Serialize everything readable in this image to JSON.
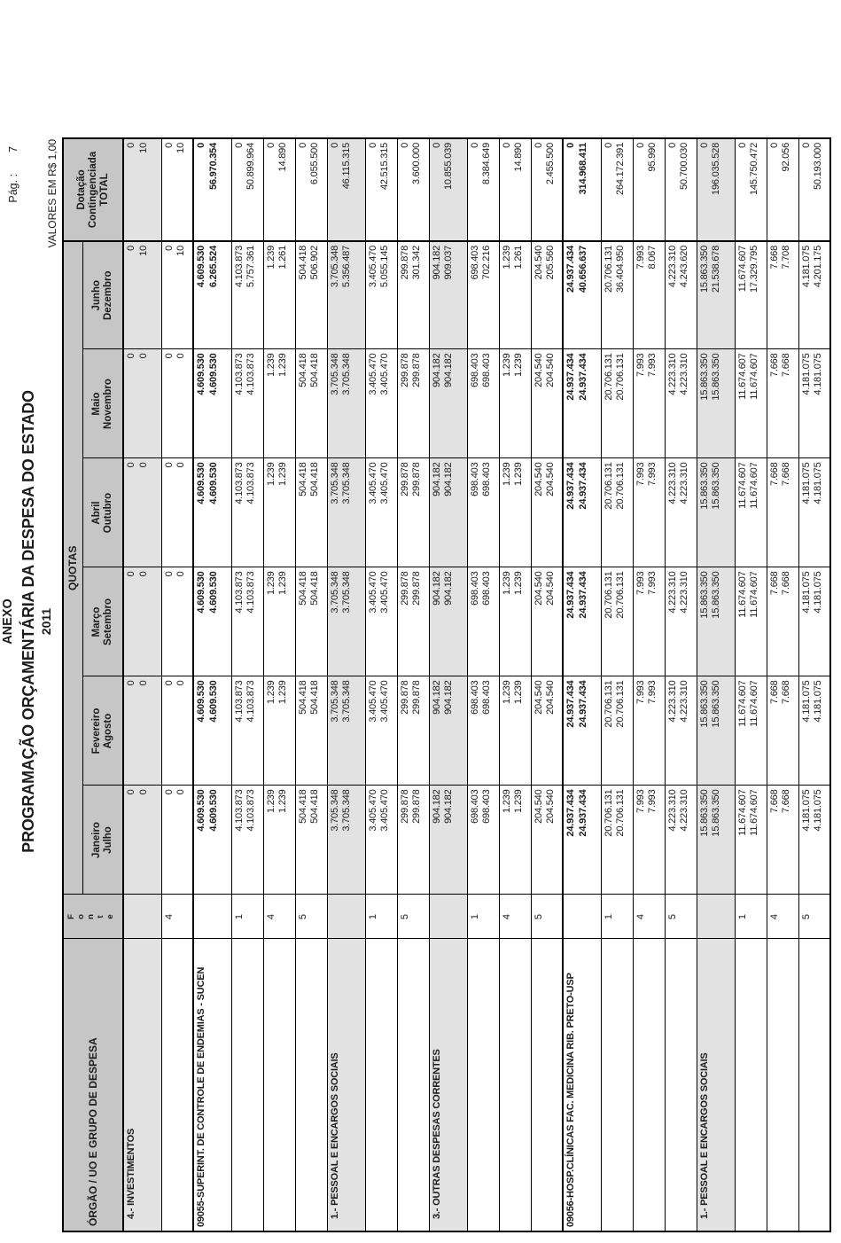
{
  "page": {
    "page_label": "Pág. :",
    "page_number": "7",
    "title_line1": "ANEXO",
    "title_line2": "PROGRAMAÇÃO ORÇAMENTÁRIA DA DESPESA DO ESTADO",
    "title_line3": "2011",
    "currency_note": "VALORES EM R$ 1,00"
  },
  "colors": {
    "header_gray": "#c6c6c6",
    "group_row_gray": "#e2e2e2",
    "border": "#000000"
  },
  "table": {
    "org_header": "ÓRGÃO / UO E GRUPO DE DESPESA",
    "fonte_header_letters": [
      "F",
      "o",
      "n",
      "t",
      "e"
    ],
    "quotas_header": "QUOTAS",
    "months": [
      {
        "line1": "Janeiro",
        "line2": "Julho"
      },
      {
        "line1": "Fevereiro",
        "line2": "Agosto"
      },
      {
        "line1": "Março",
        "line2": "Setembro"
      },
      {
        "line1": "Abril",
        "line2": "Outubro"
      },
      {
        "line1": "Maio",
        "line2": "Novembro"
      },
      {
        "line1": "Junho",
        "line2": "Dezembro"
      }
    ],
    "dotacao_header": {
      "line1": "Dotação",
      "line2": "Contingenciada",
      "line3": "TOTAL"
    },
    "rows": [
      {
        "type": "group",
        "label": "4.- INVESTIMENTOS",
        "fonte": "",
        "cells": [
          [
            "0",
            "0"
          ],
          [
            "0",
            "0"
          ],
          [
            "0",
            "0"
          ],
          [
            "0",
            "0"
          ],
          [
            "0",
            "0"
          ],
          [
            "0",
            "10"
          ],
          [
            "0",
            "10"
          ]
        ]
      },
      {
        "type": "fonte",
        "label": "",
        "fonte": "4",
        "cells": [
          [
            "0",
            "0"
          ],
          [
            "0",
            "0"
          ],
          [
            "0",
            "0"
          ],
          [
            "0",
            "0"
          ],
          [
            "0",
            "0"
          ],
          [
            "0",
            "10"
          ],
          [
            "0",
            "10"
          ]
        ]
      },
      {
        "type": "org",
        "label": "09055-SUPERINT. DE CONTROLE DE ENDEMIAS - SUCEN",
        "fonte": "",
        "cells": [
          [
            "4.609.530",
            "4.609.530"
          ],
          [
            "4.609.530",
            "4.609.530"
          ],
          [
            "4.609.530",
            "4.609.530"
          ],
          [
            "4.609.530",
            "4.609.530"
          ],
          [
            "4.609.530",
            "4.609.530"
          ],
          [
            "4.609.530",
            "6.265.524"
          ],
          [
            "0",
            "56.970.354"
          ]
        ]
      },
      {
        "type": "fonte",
        "label": "",
        "fonte": "1",
        "cells": [
          [
            "4.103.873",
            "4.103.873"
          ],
          [
            "4.103.873",
            "4.103.873"
          ],
          [
            "4.103.873",
            "4.103.873"
          ],
          [
            "4.103.873",
            "4.103.873"
          ],
          [
            "4.103.873",
            "4.103.873"
          ],
          [
            "4.103.873",
            "5.757.361"
          ],
          [
            "0",
            "50.899.964"
          ]
        ]
      },
      {
        "type": "fonte",
        "label": "",
        "fonte": "4",
        "cells": [
          [
            "1.239",
            "1.239"
          ],
          [
            "1.239",
            "1.239"
          ],
          [
            "1.239",
            "1.239"
          ],
          [
            "1.239",
            "1.239"
          ],
          [
            "1.239",
            "1.239"
          ],
          [
            "1.239",
            "1.261"
          ],
          [
            "0",
            "14.890"
          ]
        ]
      },
      {
        "type": "fonte",
        "label": "",
        "fonte": "5",
        "cells": [
          [
            "504.418",
            "504.418"
          ],
          [
            "504.418",
            "504.418"
          ],
          [
            "504.418",
            "504.418"
          ],
          [
            "504.418",
            "504.418"
          ],
          [
            "504.418",
            "504.418"
          ],
          [
            "504.418",
            "506.902"
          ],
          [
            "0",
            "6.055.500"
          ]
        ]
      },
      {
        "type": "group",
        "label": "1.- PESSOAL E ENCARGOS SOCIAIS",
        "fonte": "",
        "cells": [
          [
            "3.705.348",
            "3.705.348"
          ],
          [
            "3.705.348",
            "3.705.348"
          ],
          [
            "3.705.348",
            "3.705.348"
          ],
          [
            "3.705.348",
            "3.705.348"
          ],
          [
            "3.705.348",
            "3.705.348"
          ],
          [
            "3.705.348",
            "5.356.487"
          ],
          [
            "0",
            "46.115.315"
          ]
        ]
      },
      {
        "type": "fonte",
        "label": "",
        "fonte": "1",
        "cells": [
          [
            "3.405.470",
            "3.405.470"
          ],
          [
            "3.405.470",
            "3.405.470"
          ],
          [
            "3.405.470",
            "3.405.470"
          ],
          [
            "3.405.470",
            "3.405.470"
          ],
          [
            "3.405.470",
            "3.405.470"
          ],
          [
            "3.405.470",
            "5.055.145"
          ],
          [
            "0",
            "42.515.315"
          ]
        ]
      },
      {
        "type": "fonte",
        "label": "",
        "fonte": "5",
        "cells": [
          [
            "299.878",
            "299.878"
          ],
          [
            "299.878",
            "299.878"
          ],
          [
            "299.878",
            "299.878"
          ],
          [
            "299.878",
            "299.878"
          ],
          [
            "299.878",
            "299.878"
          ],
          [
            "299.878",
            "301.342"
          ],
          [
            "0",
            "3.600.000"
          ]
        ]
      },
      {
        "type": "group",
        "label": "3.- OUTRAS DESPESAS CORRENTES",
        "fonte": "",
        "cells": [
          [
            "904.182",
            "904.182"
          ],
          [
            "904.182",
            "904.182"
          ],
          [
            "904.182",
            "904.182"
          ],
          [
            "904.182",
            "904.182"
          ],
          [
            "904.182",
            "904.182"
          ],
          [
            "904.182",
            "909.037"
          ],
          [
            "0",
            "10.855.039"
          ]
        ]
      },
      {
        "type": "fonte",
        "label": "",
        "fonte": "1",
        "cells": [
          [
            "698.403",
            "698.403"
          ],
          [
            "698.403",
            "698.403"
          ],
          [
            "698.403",
            "698.403"
          ],
          [
            "698.403",
            "698.403"
          ],
          [
            "698.403",
            "698.403"
          ],
          [
            "698.403",
            "702.216"
          ],
          [
            "0",
            "8.384.649"
          ]
        ]
      },
      {
        "type": "fonte",
        "label": "",
        "fonte": "4",
        "cells": [
          [
            "1.239",
            "1.239"
          ],
          [
            "1.239",
            "1.239"
          ],
          [
            "1.239",
            "1.239"
          ],
          [
            "1.239",
            "1.239"
          ],
          [
            "1.239",
            "1.239"
          ],
          [
            "1.239",
            "1.261"
          ],
          [
            "0",
            "14.890"
          ]
        ]
      },
      {
        "type": "fonte",
        "label": "",
        "fonte": "5",
        "cells": [
          [
            "204.540",
            "204.540"
          ],
          [
            "204.540",
            "204.540"
          ],
          [
            "204.540",
            "204.540"
          ],
          [
            "204.540",
            "204.540"
          ],
          [
            "204.540",
            "204.540"
          ],
          [
            "204.540",
            "205.560"
          ],
          [
            "0",
            "2.455.500"
          ]
        ]
      },
      {
        "type": "org",
        "label": "09056-HOSP.CLÍNICAS FAC. MEDICINA RIB. PRETO-USP",
        "fonte": "",
        "cells": [
          [
            "24.937.434",
            "24.937.434"
          ],
          [
            "24.937.434",
            "24.937.434"
          ],
          [
            "24.937.434",
            "24.937.434"
          ],
          [
            "24.937.434",
            "24.937.434"
          ],
          [
            "24.937.434",
            "24.937.434"
          ],
          [
            "24.937.434",
            "40.656.637"
          ],
          [
            "0",
            "314.968.411"
          ]
        ]
      },
      {
        "type": "fonte",
        "label": "",
        "fonte": "1",
        "cells": [
          [
            "20.706.131",
            "20.706.131"
          ],
          [
            "20.706.131",
            "20.706.131"
          ],
          [
            "20.706.131",
            "20.706.131"
          ],
          [
            "20.706.131",
            "20.706.131"
          ],
          [
            "20.706.131",
            "20.706.131"
          ],
          [
            "20.706.131",
            "36.404.950"
          ],
          [
            "0",
            "264.172.391"
          ]
        ]
      },
      {
        "type": "fonte",
        "label": "",
        "fonte": "4",
        "cells": [
          [
            "7.993",
            "7.993"
          ],
          [
            "7.993",
            "7.993"
          ],
          [
            "7.993",
            "7.993"
          ],
          [
            "7.993",
            "7.993"
          ],
          [
            "7.993",
            "7.993"
          ],
          [
            "7.993",
            "8.067"
          ],
          [
            "0",
            "95.990"
          ]
        ]
      },
      {
        "type": "fonte",
        "label": "",
        "fonte": "5",
        "cells": [
          [
            "4.223.310",
            "4.223.310"
          ],
          [
            "4.223.310",
            "4.223.310"
          ],
          [
            "4.223.310",
            "4.223.310"
          ],
          [
            "4.223.310",
            "4.223.310"
          ],
          [
            "4.223.310",
            "4.223.310"
          ],
          [
            "4.223.310",
            "4.243.620"
          ],
          [
            "0",
            "50.700.030"
          ]
        ]
      },
      {
        "type": "group",
        "label": "1.- PESSOAL E ENCARGOS SOCIAIS",
        "fonte": "",
        "cells": [
          [
            "15.863.350",
            "15.863.350"
          ],
          [
            "15.863.350",
            "15.863.350"
          ],
          [
            "15.863.350",
            "15.863.350"
          ],
          [
            "15.863.350",
            "15.863.350"
          ],
          [
            "15.863.350",
            "15.863.350"
          ],
          [
            "15.863.350",
            "21.538.678"
          ],
          [
            "0",
            "196.035.528"
          ]
        ]
      },
      {
        "type": "fonte",
        "label": "",
        "fonte": "1",
        "cells": [
          [
            "11.674.607",
            "11.674.607"
          ],
          [
            "11.674.607",
            "11.674.607"
          ],
          [
            "11.674.607",
            "11.674.607"
          ],
          [
            "11.674.607",
            "11.674.607"
          ],
          [
            "11.674.607",
            "11.674.607"
          ],
          [
            "11.674.607",
            "17.329.795"
          ],
          [
            "0",
            "145.750.472"
          ]
        ]
      },
      {
        "type": "fonte",
        "label": "",
        "fonte": "4",
        "cells": [
          [
            "7.668",
            "7.668"
          ],
          [
            "7.668",
            "7.668"
          ],
          [
            "7.668",
            "7.668"
          ],
          [
            "7.668",
            "7.668"
          ],
          [
            "7.668",
            "7.668"
          ],
          [
            "7.668",
            "7.708"
          ],
          [
            "0",
            "92.056"
          ]
        ]
      },
      {
        "type": "fonte",
        "label": "",
        "fonte": "5",
        "cells": [
          [
            "4.181.075",
            "4.181.075"
          ],
          [
            "4.181.075",
            "4.181.075"
          ],
          [
            "4.181.075",
            "4.181.075"
          ],
          [
            "4.181.075",
            "4.181.075"
          ],
          [
            "4.181.075",
            "4.181.075"
          ],
          [
            "4.181.075",
            "4.201.175"
          ],
          [
            "0",
            "50.193.000"
          ]
        ]
      }
    ]
  }
}
